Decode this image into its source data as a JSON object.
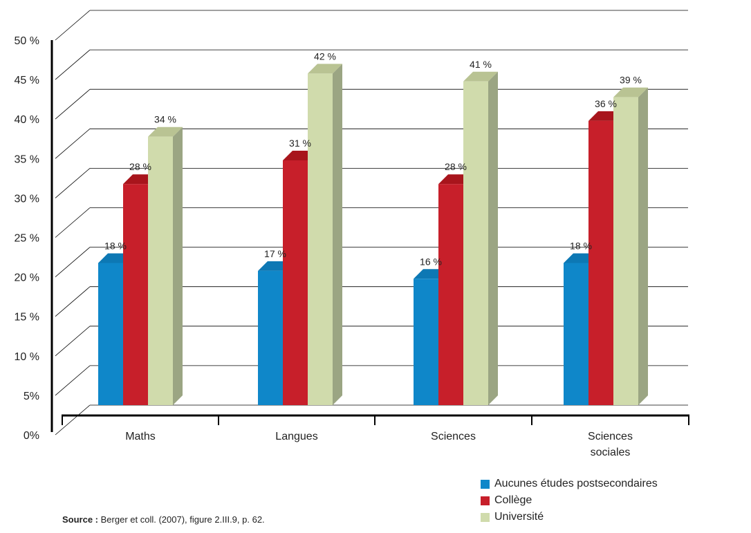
{
  "chart_data": {
    "type": "bar",
    "categories": [
      "Maths",
      "Langues",
      "Sciences",
      "Sciences\nsociales"
    ],
    "series": [
      {
        "name": "Aucunes études postsecondaires",
        "values": [
          18,
          17,
          16,
          18
        ],
        "labels": [
          "18 %",
          "17 %",
          "16 %",
          "18 %"
        ]
      },
      {
        "name": "Collège",
        "values": [
          28,
          31,
          28,
          36
        ],
        "labels": [
          "28 %",
          "31 %",
          "28 %",
          "36 %"
        ]
      },
      {
        "name": "Université",
        "values": [
          34,
          42,
          41,
          39
        ],
        "labels": [
          "34 %",
          "42 %",
          "41 %",
          "39 %"
        ]
      }
    ],
    "ylim": [
      0,
      50
    ],
    "yticks": [
      "0%",
      "5%",
      "10 %",
      "15 %",
      "20 %",
      "25 %",
      "30 %",
      "35 %",
      "40 %",
      "45 %",
      "50 %"
    ],
    "grid": true,
    "legend_position": "bottom-right",
    "colors": {
      "series_front": [
        "#0f87c9",
        "#c71f2a",
        "#d0dbac"
      ],
      "series_side": [
        "#0b6aa0",
        "#8e1419",
        "#9ba583"
      ],
      "series_top": [
        "#0d78b4",
        "#a8151c",
        "#b9c393"
      ]
    }
  },
  "source": {
    "label": "Source :",
    "text": "Berger et coll. (2007), figure 2.III.9, p. 62."
  }
}
